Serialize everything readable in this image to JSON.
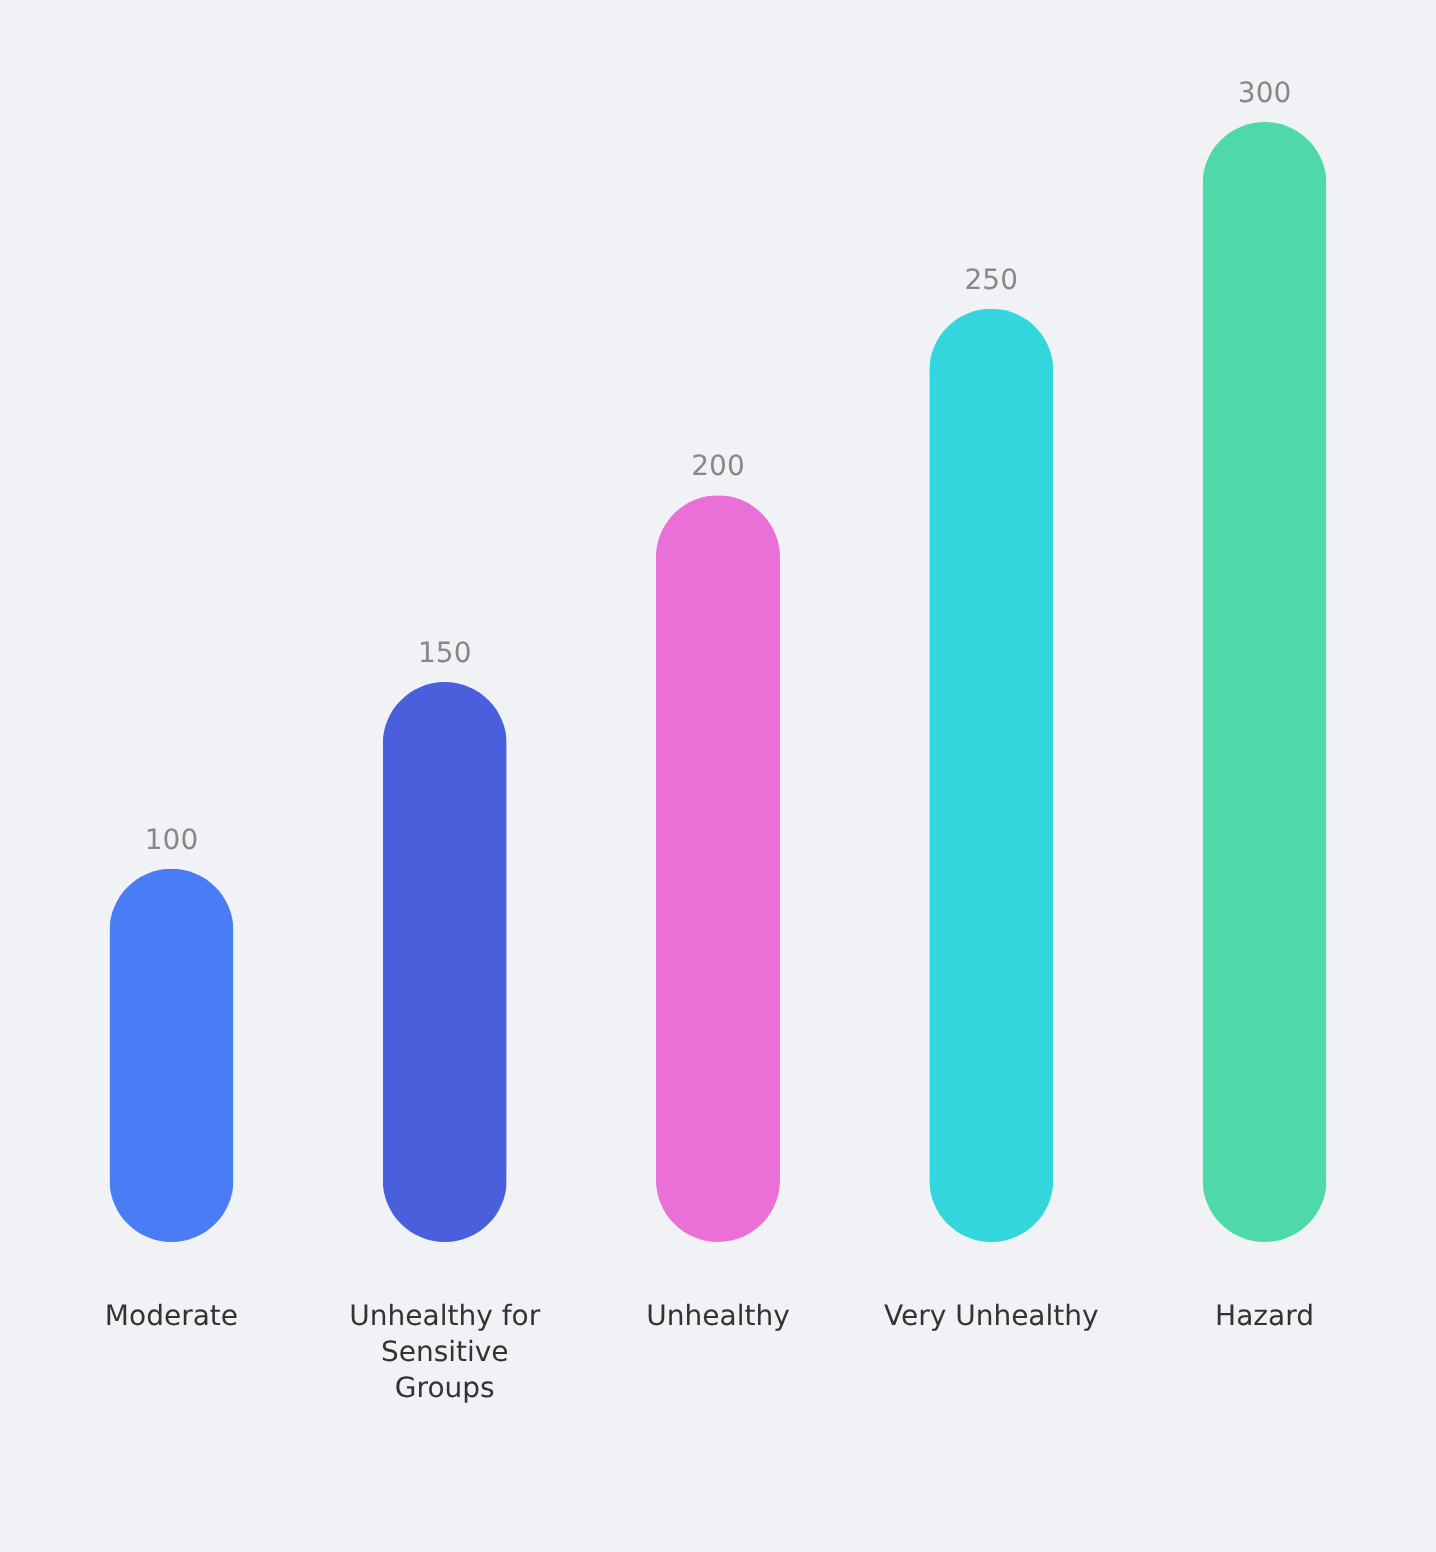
{
  "chart_data": {
    "type": "bar",
    "categories": [
      "Moderate",
      "Unhealthy for Sensitive Groups",
      "Unhealthy",
      "Very Unhealthy",
      "Hazard"
    ],
    "values": [
      100,
      150,
      200,
      250,
      300
    ],
    "colors": [
      "#4a7cf5",
      "#4a5fdc",
      "#ea6fd6",
      "#33d6dc",
      "#4fd8a8"
    ],
    "data_labels": true
  }
}
